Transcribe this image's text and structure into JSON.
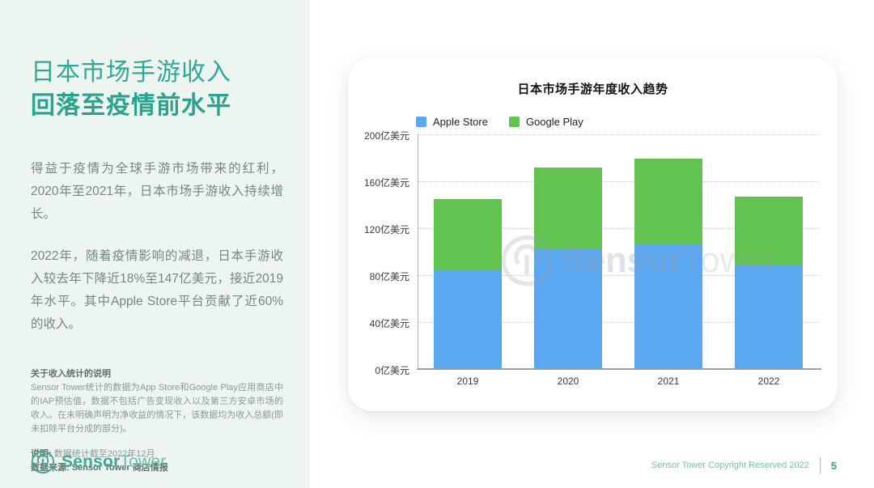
{
  "sidebar": {
    "title_line1": "日本市场手游收入",
    "title_line2": "回落至疫情前水平",
    "paragraphs": [
      "得益于疫情为全球手游市场带来的红利，2020年至2021年，日本市场手游收入持续增长。",
      "2022年，随着疫情影响的减退，日本手游收入较去年下降近18%至147亿美元，接近2019年水平。其中Apple Store平台贡献了近60%的收入。"
    ],
    "note_title": "关于收入统计的说明",
    "note_body": "Sensor Tower统计的数据为App Store和Google Play应用商店中的IAP预估值，数据不包括广告变现收入以及第三方安卓市场的收入。在未明确声明为净收益的情况下，该数据均为收入总额(即未扣除平台分成的部分)。",
    "note_label": "说明:",
    "note_date": "数据统计截至2022年12月",
    "source_label": "数据来源: Sensor Tower 商店情报",
    "logo_bold": "Sensor",
    "logo_light": "Tower"
  },
  "footer": {
    "copyright": "Sensor Tower Copyright Reserved 2022",
    "page_number": "5"
  },
  "watermark": {
    "bold": "Sensor",
    "light": "Tower"
  },
  "chart_data": {
    "type": "bar",
    "stacked": true,
    "title": "日本市场手游年度收入趋势",
    "categories": [
      "2019",
      "2020",
      "2021",
      "2022"
    ],
    "series": [
      {
        "name": "Apple Store",
        "color": "#5ba7f0",
        "values": [
          84,
          102,
          106,
          88
        ]
      },
      {
        "name": "Google Play",
        "color": "#62c351",
        "values": [
          61,
          70,
          73,
          59
        ]
      }
    ],
    "totals": [
      145,
      172,
      179,
      147
    ],
    "unit": "亿美元",
    "ylabel": "",
    "xlabel": "",
    "ylim": [
      0,
      200
    ],
    "ytick_step": 40,
    "ytick_suffix": "亿美元",
    "legend_position": "top-left",
    "grid": "horizontal-dotted",
    "watermark_text": "SensorTower"
  }
}
